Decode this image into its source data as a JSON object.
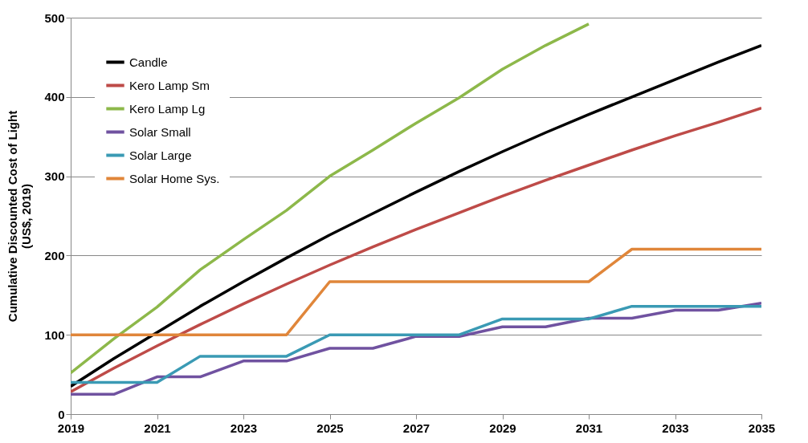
{
  "chart_data": {
    "type": "line",
    "ylabel": "Cumulative Discounted Cost of Light\n(US$, 2019)",
    "x": [
      2019,
      2020,
      2021,
      2022,
      2023,
      2024,
      2025,
      2026,
      2027,
      2028,
      2029,
      2030,
      2031,
      2032,
      2033,
      2034,
      2035
    ],
    "series": [
      {
        "name": "Candle",
        "color": "#000000",
        "values": [
          35,
          70,
          103,
          136,
          167,
          197,
          226,
          253,
          280,
          306,
          331,
          355,
          378,
          400,
          422,
          444,
          465
        ]
      },
      {
        "name": "Kero Lamp Sm",
        "color": "#be4b48",
        "values": [
          28,
          58,
          86,
          113,
          139,
          164,
          188,
          211,
          233,
          254,
          275,
          295,
          314,
          333,
          351,
          368,
          386
        ]
      },
      {
        "name": "Kero Lamp Lg",
        "color": "#8db84a",
        "values": [
          52,
          95,
          135,
          182,
          220,
          257,
          300,
          333,
          367,
          399,
          435,
          465,
          492,
          null,
          null,
          null,
          null
        ]
      },
      {
        "name": "Solar Small",
        "color": "#7052a0",
        "values": [
          25,
          25,
          47,
          47,
          67,
          67,
          83,
          83,
          98,
          98,
          110,
          110,
          121,
          121,
          131,
          131,
          140
        ]
      },
      {
        "name": "Solar Large",
        "color": "#3a9ab4",
        "values": [
          40,
          40,
          40,
          73,
          73,
          73,
          100,
          100,
          100,
          100,
          120,
          120,
          120,
          136,
          136,
          136,
          136
        ]
      },
      {
        "name": "Solar Home Sys.",
        "color": "#e0863a",
        "values": [
          100,
          100,
          100,
          100,
          100,
          100,
          167,
          167,
          167,
          167,
          167,
          167,
          167,
          208,
          208,
          208,
          208
        ]
      }
    ],
    "xlim": [
      2019,
      2035
    ],
    "xticks": [
      2019,
      2021,
      2023,
      2025,
      2027,
      2029,
      2031,
      2033,
      2035
    ],
    "ylim": [
      0,
      500
    ],
    "yticks": [
      0,
      100,
      200,
      300,
      400,
      500
    ],
    "grid": "y",
    "legend": "top left",
    "marker": "none",
    "line_style": "solid"
  }
}
